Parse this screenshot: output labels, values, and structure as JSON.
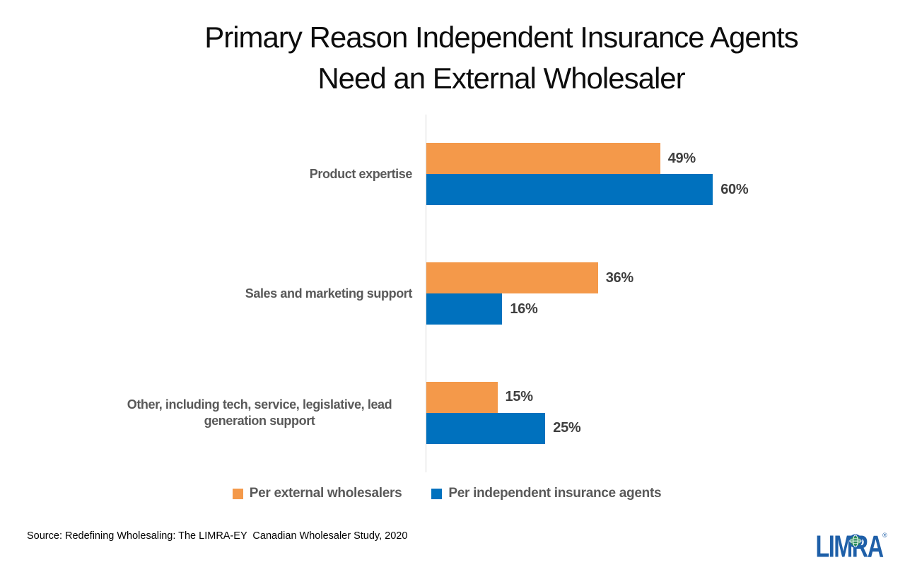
{
  "title": {
    "line1": "Primary Reason Independent Insurance Agents",
    "line2": "Need an External Wholesaler"
  },
  "chart_data": {
    "type": "bar",
    "orientation": "horizontal",
    "title": "Primary Reason Independent Insurance Agents Need an External Wholesaler",
    "categories": [
      "Product expertise",
      "Sales and marketing support",
      "Other, including tech, service, legislative, lead generation support"
    ],
    "series": [
      {
        "name": "Per external wholesalers",
        "color": "#F4994A",
        "values": [
          49,
          36,
          15
        ]
      },
      {
        "name": "Per independent insurance agents",
        "color": "#0071BE",
        "values": [
          60,
          16,
          25
        ]
      }
    ],
    "value_suffix": "%",
    "xlim": [
      0,
      65
    ],
    "gridlines": false,
    "data_labels": true,
    "legend_position": "bottom",
    "axis_line_color": "#D9D9D9"
  },
  "source_note": "Source: Redefining Wholesaling: The LIMRA-EY  Canadian Wholesaler Study, 2020",
  "logo": {
    "text": "LIMRA",
    "registered_mark": "®",
    "color": "#1E5FA8"
  }
}
